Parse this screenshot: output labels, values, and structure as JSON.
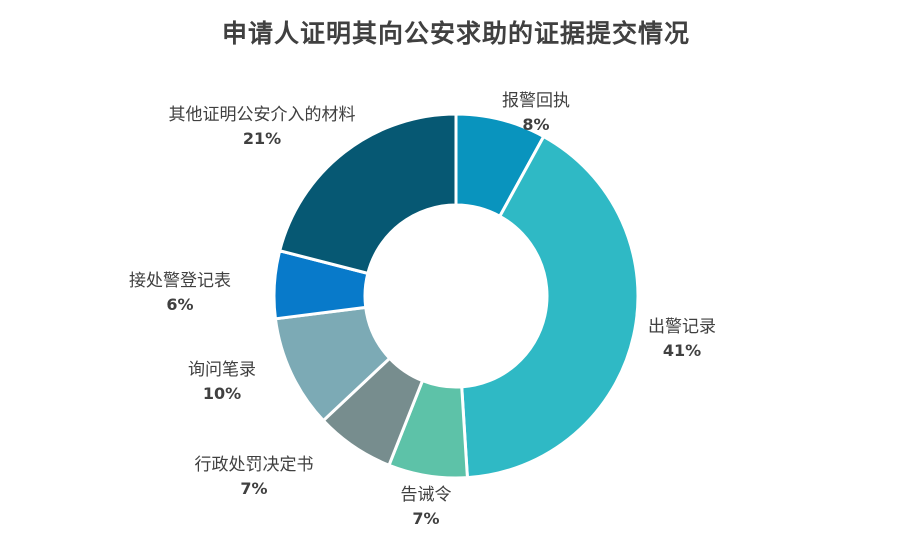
{
  "chart_data": {
    "type": "pie",
    "title": "申请人证明其向公安求助的证据提交情况",
    "slices": [
      {
        "label": "报警回执",
        "value": 8,
        "display": "8%",
        "color": "#0994BE"
      },
      {
        "label": "出警记录",
        "value": 41,
        "display": "41%",
        "color": "#2FB9C5"
      },
      {
        "label": "告诫令",
        "value": 7,
        "display": "7%",
        "color": "#5DC2A8"
      },
      {
        "label": "行政处罚决定书",
        "value": 7,
        "display": "7%",
        "color": "#778D8E"
      },
      {
        "label": "询问笔录",
        "value": 10,
        "display": "10%",
        "color": "#7CAAB5"
      },
      {
        "label": "接处警登记表",
        "value": 6,
        "display": "6%",
        "color": "#087ACA"
      },
      {
        "label": "其他证明公安介入的材料",
        "value": 21,
        "display": "21%",
        "color": "#065873"
      }
    ],
    "legend": "none"
  }
}
